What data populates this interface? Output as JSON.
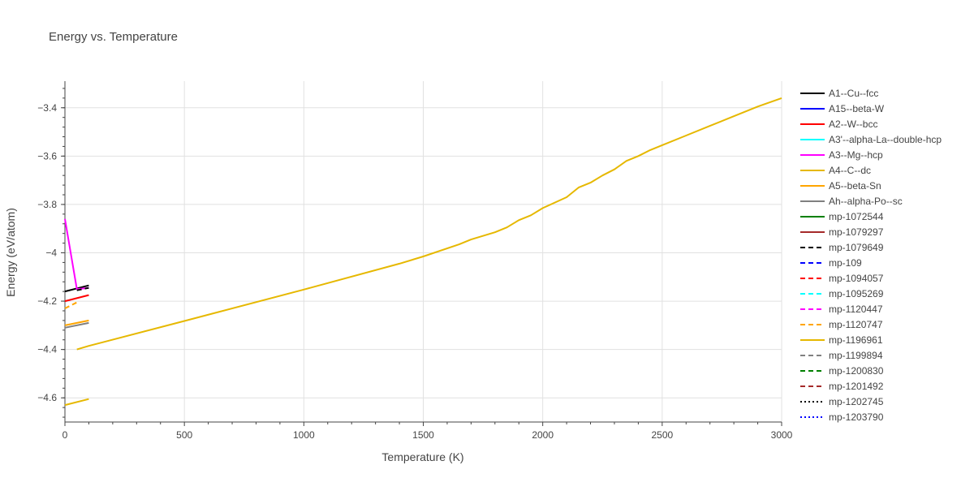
{
  "chart_data": {
    "type": "line",
    "title": "Energy vs. Temperature",
    "xlabel": "Temperature (K)",
    "ylabel": "Energy (eV/atom)",
    "xlim": [
      0,
      3000
    ],
    "ylim": [
      -4.7,
      -3.29
    ],
    "x_ticks": [
      0,
      500,
      1000,
      1500,
      2000,
      2500,
      3000
    ],
    "x_tick_labels": [
      "0",
      "500",
      "1000",
      "1500",
      "2000",
      "2500",
      "3000"
    ],
    "y_ticks": [
      -3.4,
      -3.6,
      -3.8,
      -4.0,
      -4.2,
      -4.4,
      -4.6
    ],
    "y_tick_labels": [
      "−3.4",
      "−3.6",
      "−3.8",
      "−4",
      "−4.2",
      "−4.4",
      "−4.6"
    ],
    "grid": true,
    "legend_position": "right",
    "series": [
      {
        "name": "A1--Cu--fcc",
        "color": "#000000",
        "dash": "solid",
        "x": [
          0,
          100
        ],
        "y": [
          -4.16,
          -4.135
        ]
      },
      {
        "name": "A15--beta-W",
        "color": "#0000ff",
        "dash": "solid",
        "x": [],
        "y": []
      },
      {
        "name": "A2--W--bcc",
        "color": "#ff0000",
        "dash": "solid",
        "x": [
          0,
          100
        ],
        "y": [
          -4.2,
          -4.175
        ]
      },
      {
        "name": "A3'--alpha-La--double-hcp",
        "color": "#00ffff",
        "dash": "solid",
        "x": [],
        "y": []
      },
      {
        "name": "A3--Mg--hcp",
        "color": "#ff00ff",
        "dash": "solid",
        "x": [
          0,
          50,
          100
        ],
        "y": [
          -3.86,
          -4.15,
          -4.145
        ]
      },
      {
        "name": "A4--C--dc",
        "color": "#e6b800",
        "dash": "solid",
        "x": [
          0,
          100
        ],
        "y": [
          -4.63,
          -4.605
        ]
      },
      {
        "name": "A5--beta-Sn",
        "color": "#ffa500",
        "dash": "solid",
        "x": [
          0,
          100
        ],
        "y": [
          -4.3,
          -4.28
        ]
      },
      {
        "name": "Ah--alpha-Po--sc",
        "color": "#808080",
        "dash": "solid",
        "x": [
          0,
          100
        ],
        "y": [
          -4.31,
          -4.29
        ]
      },
      {
        "name": "mp-1072544",
        "color": "#008000",
        "dash": "solid",
        "x": [],
        "y": []
      },
      {
        "name": "mp-1079297",
        "color": "#a52a2a",
        "dash": "solid",
        "x": [],
        "y": []
      },
      {
        "name": "mp-1079649",
        "color": "#000000",
        "dash": "dash",
        "x": [
          50,
          100
        ],
        "y": [
          -4.155,
          -4.145
        ]
      },
      {
        "name": "mp-109",
        "color": "#0000ff",
        "dash": "dash",
        "x": [],
        "y": []
      },
      {
        "name": "mp-1094057",
        "color": "#ff0000",
        "dash": "dash",
        "x": [],
        "y": []
      },
      {
        "name": "mp-1095269",
        "color": "#00ffff",
        "dash": "dash",
        "x": [],
        "y": []
      },
      {
        "name": "mp-1120447",
        "color": "#ff00ff",
        "dash": "dash",
        "x": [],
        "y": []
      },
      {
        "name": "mp-1120747",
        "color": "#ffa500",
        "dash": "dash",
        "x": [
          0,
          50
        ],
        "y": [
          -4.23,
          -4.205
        ]
      },
      {
        "name": "mp-1196961",
        "color": "#e6b800",
        "dash": "solid",
        "x": [
          50,
          100,
          500,
          1000,
          1400,
          1500,
          1650,
          1700,
          1800,
          1850,
          1900,
          1950,
          2000,
          2100,
          2150,
          2200,
          2250,
          2300,
          2350,
          2400,
          2450,
          2500,
          2600,
          2700,
          2800,
          2900,
          3000
        ],
        "y": [
          -4.4,
          -4.385,
          -4.282,
          -4.152,
          -4.045,
          -4.015,
          -3.965,
          -3.945,
          -3.915,
          -3.895,
          -3.865,
          -3.845,
          -3.815,
          -3.77,
          -3.73,
          -3.71,
          -3.68,
          -3.655,
          -3.62,
          -3.6,
          -3.575,
          -3.555,
          -3.515,
          -3.475,
          -3.435,
          -3.395,
          -3.36
        ]
      },
      {
        "name": "mp-1199894",
        "color": "#808080",
        "dash": "dash",
        "x": [],
        "y": []
      },
      {
        "name": "mp-1200830",
        "color": "#008000",
        "dash": "dash",
        "x": [],
        "y": []
      },
      {
        "name": "mp-1201492",
        "color": "#a52a2a",
        "dash": "dash",
        "x": [],
        "y": []
      },
      {
        "name": "mp-1202745",
        "color": "#000000",
        "dash": "dot",
        "x": [],
        "y": []
      },
      {
        "name": "mp-1203790",
        "color": "#0000ff",
        "dash": "dot",
        "x": [],
        "y": []
      }
    ]
  }
}
